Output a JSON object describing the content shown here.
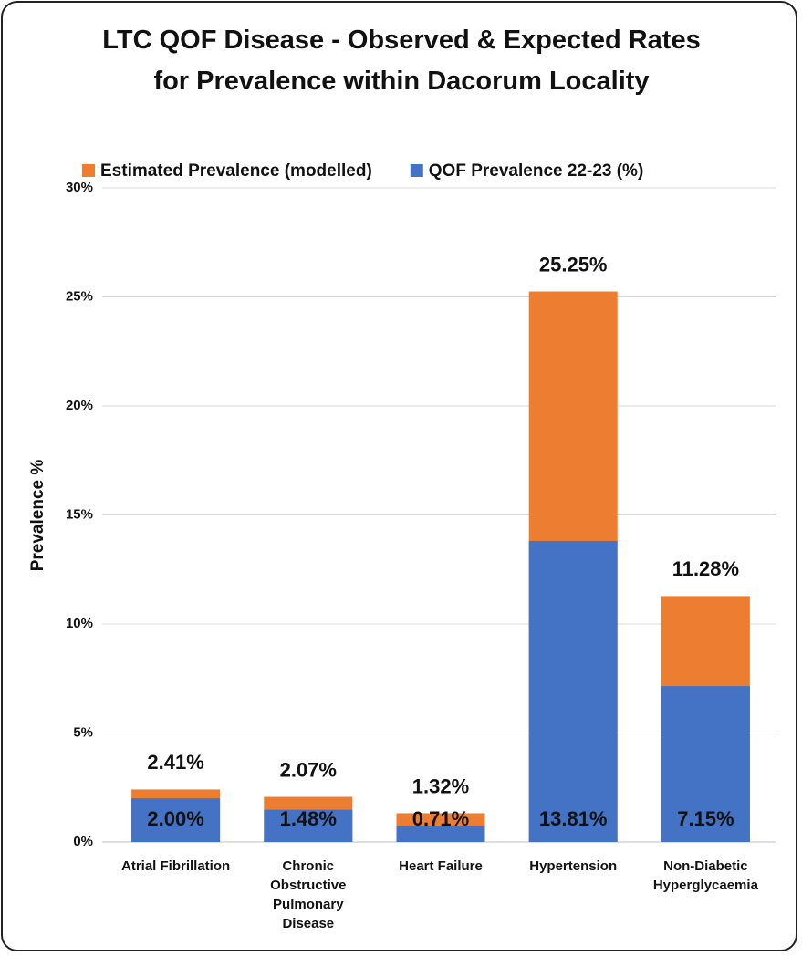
{
  "chart_data": {
    "type": "bar",
    "overlap": true,
    "title": "LTC QOF Disease - Observed & Expected Rates for Prevalence within Dacorum Locality",
    "ylabel": "Prevalence %",
    "categories": [
      "Atrial Fibrillation",
      "Chronic Obstructive Pulmonary Disease",
      "Heart Failure",
      "Hypertension",
      "Non-Diabetic Hyperglycaemia"
    ],
    "series": [
      {
        "name": "Estimated Prevalence (modelled)",
        "color": "#ed7d31",
        "values": [
          2.41,
          2.07,
          1.32,
          25.25,
          11.28
        ],
        "value_labels": [
          "2.41%",
          "2.07%",
          "1.32%",
          "25.25%",
          "11.28%"
        ]
      },
      {
        "name": "QOF Prevalence 22-23 (%)",
        "color": "#4472c4",
        "values": [
          2.0,
          1.48,
          0.71,
          13.81,
          7.15
        ],
        "value_labels": [
          "2.00%",
          "1.48%",
          "0.71%",
          "13.81%",
          "7.15%"
        ]
      }
    ],
    "ylim": [
      0,
      30
    ],
    "yticks": [
      {
        "value": 0,
        "label": "0%"
      },
      {
        "value": 5,
        "label": "5%"
      },
      {
        "value": 10,
        "label": "10%"
      },
      {
        "value": 15,
        "label": "15%"
      },
      {
        "value": 20,
        "label": "20%"
      },
      {
        "value": 25,
        "label": "25%"
      },
      {
        "value": 30,
        "label": "30%"
      }
    ],
    "grid": true,
    "legend": "top"
  }
}
